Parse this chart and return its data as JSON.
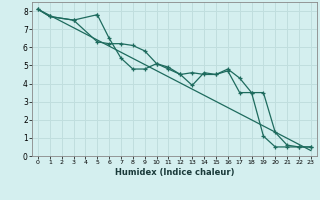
{
  "xlabel": "Humidex (Indice chaleur)",
  "ylabel": "",
  "xlim": [
    -0.5,
    23.5
  ],
  "ylim": [
    0,
    8.5
  ],
  "bg_color": "#d4efef",
  "grid_color": "#c0dede",
  "line_color": "#1e6b5e",
  "line1_x": [
    0,
    1,
    3,
    5,
    5,
    6,
    7,
    8,
    9,
    10,
    11,
    12,
    13,
    14,
    15,
    16,
    17,
    18,
    19,
    20,
    21,
    22,
    23
  ],
  "line1_y": [
    8.1,
    7.7,
    7.5,
    7.8,
    7.8,
    6.5,
    5.4,
    4.8,
    4.8,
    5.1,
    4.9,
    4.5,
    3.9,
    4.6,
    4.5,
    4.8,
    4.3,
    3.5,
    3.5,
    1.3,
    0.6,
    0.5,
    0.5
  ],
  "line2_x": [
    0,
    1,
    3,
    5,
    6,
    7,
    8,
    9,
    10,
    11,
    12,
    13,
    14,
    15,
    16,
    17,
    18,
    19,
    20,
    21,
    22,
    23
  ],
  "line2_y": [
    8.1,
    7.7,
    7.5,
    6.3,
    6.2,
    6.2,
    6.1,
    5.8,
    5.1,
    4.8,
    4.5,
    4.6,
    4.5,
    4.5,
    4.7,
    3.5,
    3.5,
    1.1,
    0.5,
    0.5,
    0.5,
    0.5
  ],
  "line3_x": [
    0,
    23
  ],
  "line3_y": [
    8.1,
    0.3
  ],
  "xticks": [
    0,
    1,
    2,
    3,
    4,
    5,
    6,
    7,
    8,
    9,
    10,
    11,
    12,
    13,
    14,
    15,
    16,
    17,
    18,
    19,
    20,
    21,
    22,
    23
  ],
  "yticks": [
    0,
    1,
    2,
    3,
    4,
    5,
    6,
    7,
    8
  ]
}
